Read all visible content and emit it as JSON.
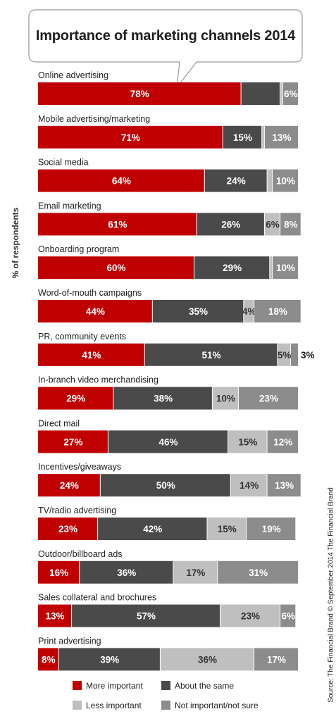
{
  "chart_data": {
    "type": "bar",
    "orientation": "horizontal",
    "stacked": true,
    "title": "Importance of marketing channels 2014",
    "ylabel": "% of respondents",
    "source": "Source: The Financial Brand © September 2014 The Financial Brand",
    "xlim": [
      0,
      100
    ],
    "legend_position": "bottom",
    "grid": false,
    "colors": {
      "More important": "#c00000",
      "About the same": "#4a4a4a",
      "Less important": "#bfbfbf",
      "Not important/not sure": "#8c8c8c"
    },
    "categories": [
      "Online advertising",
      "Mobile advertising/marketing",
      "Social media",
      "Email marketing",
      "Onboarding program",
      "Word-of-mouth campaigns",
      "PR, community events",
      "In-branch video merchandising",
      "Direct mail",
      "Incentives/giveaways",
      "TV/radio advertising",
      "Outdoor/billboard ads",
      "Sales collateral and brochures",
      "Print advertising"
    ],
    "series": [
      {
        "name": "More important",
        "values": [
          78,
          71,
          64,
          61,
          60,
          44,
          41,
          29,
          27,
          24,
          23,
          16,
          13,
          8
        ]
      },
      {
        "name": "About the same",
        "values": [
          15,
          15,
          24,
          26,
          29,
          35,
          51,
          38,
          46,
          50,
          42,
          36,
          57,
          39
        ]
      },
      {
        "name": "Less important",
        "values": [
          1,
          1,
          2,
          6,
          1,
          4,
          5,
          10,
          15,
          14,
          15,
          17,
          23,
          36
        ]
      },
      {
        "name": "Not important/not sure",
        "values": [
          6,
          13,
          10,
          8,
          10,
          18,
          3,
          23,
          12,
          13,
          19,
          31,
          6,
          17
        ]
      }
    ],
    "data_labels": [
      [
        "78%",
        "",
        "",
        "6%"
      ],
      [
        "71%",
        "15%",
        "",
        "13%"
      ],
      [
        "64%",
        "24%",
        "",
        "10%"
      ],
      [
        "61%",
        "26%",
        "6%",
        "8%"
      ],
      [
        "60%",
        "29%",
        "",
        "10%"
      ],
      [
        "44%",
        "35%",
        "4%",
        "18%"
      ],
      [
        "41%",
        "51%",
        "5%",
        "3%"
      ],
      [
        "29%",
        "38%",
        "10%",
        "23%"
      ],
      [
        "27%",
        "46%",
        "15%",
        "12%"
      ],
      [
        "24%",
        "50%",
        "14%",
        "13%"
      ],
      [
        "23%",
        "42%",
        "15%",
        "19%"
      ],
      [
        "16%",
        "36%",
        "17%",
        "31%"
      ],
      [
        "13%",
        "57%",
        "23%",
        "6%"
      ],
      [
        "8%",
        "39%",
        "36%",
        "17%"
      ]
    ]
  }
}
